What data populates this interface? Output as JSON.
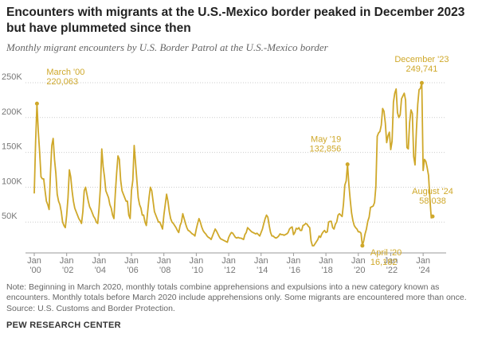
{
  "chart_data": {
    "type": "line",
    "title": "Encounters with migrants at the U.S.-Mexico border peaked in December 2023 but have plummeted since then",
    "subtitle": "Monthly migrant encounters by U.S. Border Patrol at the U.S.-Mexico border",
    "note": "Note: Beginning in March 2020, monthly totals combine apprehensions and expulsions into a new category known as encounters. Monthly totals before March 2020 include apprehensions only. Some migrants are encountered more than once.",
    "source": "Source: U.S. Customs and Border Protection.",
    "footer": "PEW RESEARCH CENTER",
    "x": [
      "2000-01",
      "2000-02",
      "2000-03",
      "2000-04",
      "2000-05",
      "2000-06",
      "2000-07",
      "2000-08",
      "2000-09",
      "2000-10",
      "2000-11",
      "2000-12",
      "2001-01",
      "2001-02",
      "2001-03",
      "2001-04",
      "2001-05",
      "2001-06",
      "2001-07",
      "2001-08",
      "2001-09",
      "2001-10",
      "2001-11",
      "2001-12",
      "2002-01",
      "2002-02",
      "2002-03",
      "2002-04",
      "2002-05",
      "2002-06",
      "2002-07",
      "2002-08",
      "2002-09",
      "2002-10",
      "2002-11",
      "2002-12",
      "2003-01",
      "2003-02",
      "2003-03",
      "2003-04",
      "2003-05",
      "2003-06",
      "2003-07",
      "2003-08",
      "2003-09",
      "2003-10",
      "2003-11",
      "2003-12",
      "2004-01",
      "2004-02",
      "2004-03",
      "2004-04",
      "2004-05",
      "2004-06",
      "2004-07",
      "2004-08",
      "2004-09",
      "2004-10",
      "2004-11",
      "2004-12",
      "2005-01",
      "2005-02",
      "2005-03",
      "2005-04",
      "2005-05",
      "2005-06",
      "2005-07",
      "2005-08",
      "2005-09",
      "2005-10",
      "2005-11",
      "2005-12",
      "2006-01",
      "2006-02",
      "2006-03",
      "2006-04",
      "2006-05",
      "2006-06",
      "2006-07",
      "2006-08",
      "2006-09",
      "2006-10",
      "2006-11",
      "2006-12",
      "2007-01",
      "2007-02",
      "2007-03",
      "2007-04",
      "2007-05",
      "2007-06",
      "2007-07",
      "2007-08",
      "2007-09",
      "2007-10",
      "2007-11",
      "2007-12",
      "2008-01",
      "2008-02",
      "2008-03",
      "2008-04",
      "2008-05",
      "2008-06",
      "2008-07",
      "2008-08",
      "2008-09",
      "2008-10",
      "2008-11",
      "2008-12",
      "2009-01",
      "2009-02",
      "2009-03",
      "2009-04",
      "2009-05",
      "2009-06",
      "2009-07",
      "2009-08",
      "2009-09",
      "2009-10",
      "2009-11",
      "2009-12",
      "2010-01",
      "2010-02",
      "2010-03",
      "2010-04",
      "2010-05",
      "2010-06",
      "2010-07",
      "2010-08",
      "2010-09",
      "2010-10",
      "2010-11",
      "2010-12",
      "2011-01",
      "2011-02",
      "2011-03",
      "2011-04",
      "2011-05",
      "2011-06",
      "2011-07",
      "2011-08",
      "2011-09",
      "2011-10",
      "2011-11",
      "2011-12",
      "2012-01",
      "2012-02",
      "2012-03",
      "2012-04",
      "2012-05",
      "2012-06",
      "2012-07",
      "2012-08",
      "2012-09",
      "2012-10",
      "2012-11",
      "2012-12",
      "2013-01",
      "2013-02",
      "2013-03",
      "2013-04",
      "2013-05",
      "2013-06",
      "2013-07",
      "2013-08",
      "2013-09",
      "2013-10",
      "2013-11",
      "2013-12",
      "2014-01",
      "2014-02",
      "2014-03",
      "2014-04",
      "2014-05",
      "2014-06",
      "2014-07",
      "2014-08",
      "2014-09",
      "2014-10",
      "2014-11",
      "2014-12",
      "2015-01",
      "2015-02",
      "2015-03",
      "2015-04",
      "2015-05",
      "2015-06",
      "2015-07",
      "2015-08",
      "2015-09",
      "2015-10",
      "2015-11",
      "2015-12",
      "2016-01",
      "2016-02",
      "2016-03",
      "2016-04",
      "2016-05",
      "2016-06",
      "2016-07",
      "2016-08",
      "2016-09",
      "2016-10",
      "2016-11",
      "2016-12",
      "2017-01",
      "2017-02",
      "2017-03",
      "2017-04",
      "2017-05",
      "2017-06",
      "2017-07",
      "2017-08",
      "2017-09",
      "2017-10",
      "2017-11",
      "2017-12",
      "2018-01",
      "2018-02",
      "2018-03",
      "2018-04",
      "2018-05",
      "2018-06",
      "2018-07",
      "2018-08",
      "2018-09",
      "2018-10",
      "2018-11",
      "2018-12",
      "2019-01",
      "2019-02",
      "2019-03",
      "2019-04",
      "2019-05",
      "2019-06",
      "2019-07",
      "2019-08",
      "2019-09",
      "2019-10",
      "2019-11",
      "2019-12",
      "2020-01",
      "2020-02",
      "2020-03",
      "2020-04",
      "2020-05",
      "2020-06",
      "2020-07",
      "2020-08",
      "2020-09",
      "2020-10",
      "2020-11",
      "2020-12",
      "2021-01",
      "2021-02",
      "2021-03",
      "2021-04",
      "2021-05",
      "2021-06",
      "2021-07",
      "2021-08",
      "2021-09",
      "2021-10",
      "2021-11",
      "2021-12",
      "2022-01",
      "2022-02",
      "2022-03",
      "2022-04",
      "2022-05",
      "2022-06",
      "2022-07",
      "2022-08",
      "2022-09",
      "2022-10",
      "2022-11",
      "2022-12",
      "2023-01",
      "2023-02",
      "2023-03",
      "2023-04",
      "2023-05",
      "2023-06",
      "2023-07",
      "2023-08",
      "2023-09",
      "2023-10",
      "2023-11",
      "2023-12",
      "2024-01",
      "2024-02",
      "2024-03",
      "2024-04",
      "2024-05",
      "2024-06",
      "2024-07",
      "2024-08"
    ],
    "series": [
      {
        "color": "#cfa82a",
        "values": [
          91000,
          165000,
          220063,
          180000,
          150000,
          115000,
          112000,
          112000,
          95000,
          80000,
          75000,
          68000,
          120000,
          160000,
          170000,
          140000,
          120000,
          90000,
          80000,
          75000,
          65000,
          50000,
          45000,
          42000,
          60000,
          85000,
          125000,
          115000,
          95000,
          80000,
          70000,
          65000,
          60000,
          55000,
          52000,
          48000,
          65000,
          95000,
          100000,
          90000,
          80000,
          72000,
          68000,
          63000,
          58000,
          55000,
          50000,
          48000,
          70000,
          100000,
          155000,
          130000,
          115000,
          95000,
          90000,
          85000,
          75000,
          70000,
          60000,
          55000,
          90000,
          120000,
          145000,
          140000,
          110000,
          95000,
          90000,
          85000,
          80000,
          80000,
          60000,
          55000,
          95000,
          110000,
          160000,
          135000,
          110000,
          85000,
          75000,
          70000,
          60000,
          60000,
          50000,
          45000,
          65000,
          85000,
          100000,
          95000,
          80000,
          65000,
          60000,
          55000,
          50000,
          50000,
          45000,
          40000,
          60000,
          75000,
          90000,
          80000,
          65000,
          55000,
          50000,
          48000,
          45000,
          42000,
          38000,
          35000,
          45000,
          50000,
          62000,
          55000,
          48000,
          42000,
          38000,
          37000,
          35000,
          33000,
          32000,
          30000,
          40000,
          48000,
          55000,
          50000,
          43000,
          38000,
          35000,
          33000,
          30000,
          28000,
          27000,
          25000,
          30000,
          35000,
          40000,
          37000,
          33000,
          29000,
          26000,
          25000,
          24000,
          23000,
          22000,
          21000,
          28000,
          32000,
          35000,
          34000,
          31000,
          28000,
          27000,
          28000,
          27000,
          27000,
          26000,
          25000,
          32000,
          35000,
          42000,
          40000,
          38000,
          36000,
          35000,
          34000,
          33000,
          34000,
          32000,
          30000,
          35000,
          40000,
          48000,
          55000,
          60000,
          57000,
          45000,
          35000,
          30000,
          30000,
          28000,
          27000,
          28000,
          30000,
          33000,
          32000,
          32000,
          31000,
          32000,
          33000,
          35000,
          40000,
          42000,
          43000,
          32000,
          35000,
          41000,
          40000,
          42000,
          38000,
          38000,
          45000,
          46000,
          48000,
          47000,
          44000,
          42000,
          23000,
          16000,
          16000,
          19000,
          22000,
          25000,
          30000,
          28000,
          33000,
          36000,
          38000,
          35000,
          36000,
          50000,
          51000,
          51000,
          42000,
          40000,
          47000,
          50000,
          60000,
          62000,
          60000,
          58000,
          76000,
          103000,
          109000,
          132856,
          104000,
          82000,
          63000,
          52000,
          45000,
          42000,
          40000,
          36000,
          36000,
          34000,
          16182,
          23000,
          33000,
          40000,
          51000,
          57000,
          71000,
          72000,
          73000,
          78000,
          101000,
          173000,
          178000,
          180000,
          189000,
          213000,
          209000,
          192000,
          164000,
          174000,
          179000,
          154000,
          166000,
          222000,
          235000,
          241000,
          207000,
          200000,
          204000,
          227000,
          231000,
          235000,
          225000,
          157000,
          155000,
          193000,
          211000,
          206000,
          144000,
          132000,
          181000,
          219000,
          240000,
          242000,
          249741,
          124000,
          140000,
          137000,
          128000,
          117000,
          84000,
          56000,
          58038
        ]
      }
    ],
    "xlim": [
      "2000-01",
      "2024-08"
    ],
    "xticks": [
      {
        "value": "2000-01",
        "label": "Jan '00"
      },
      {
        "value": "2002-01",
        "label": "Jan '02"
      },
      {
        "value": "2004-01",
        "label": "Jan '04"
      },
      {
        "value": "2006-01",
        "label": "Jan '06"
      },
      {
        "value": "2008-01",
        "label": "Jan '08"
      },
      {
        "value": "2010-01",
        "label": "Jan '10"
      },
      {
        "value": "2012-01",
        "label": "Jan '12"
      },
      {
        "value": "2014-01",
        "label": "Jan '14"
      },
      {
        "value": "2016-01",
        "label": "Jan '16"
      },
      {
        "value": "2018-01",
        "label": "Jan '18"
      },
      {
        "value": "2020-01",
        "label": "Jan '20"
      },
      {
        "value": "2022-01",
        "label": "Jan '22"
      },
      {
        "value": "2024-01",
        "label": "Jan '24"
      }
    ],
    "ylim": [
      0,
      250000
    ],
    "yticks": [
      {
        "value": 50000,
        "label": "50K"
      },
      {
        "value": 100000,
        "label": "100K"
      },
      {
        "value": 150000,
        "label": "150K"
      },
      {
        "value": 200000,
        "label": "200K"
      },
      {
        "value": 250000,
        "label": "250K"
      }
    ],
    "grid": true,
    "annotations": [
      {
        "x": "2000-03",
        "date": "March '00",
        "value_label": "220,063"
      },
      {
        "x": "2019-05",
        "date": "May '19",
        "value_label": "132,856"
      },
      {
        "x": "2020-04",
        "date": "April '20",
        "value_label": "16,182"
      },
      {
        "x": "2023-12",
        "date": "December '23",
        "value_label": "249,741"
      },
      {
        "x": "2024-08",
        "date": "August '24",
        "value_label": "58,038"
      }
    ]
  }
}
